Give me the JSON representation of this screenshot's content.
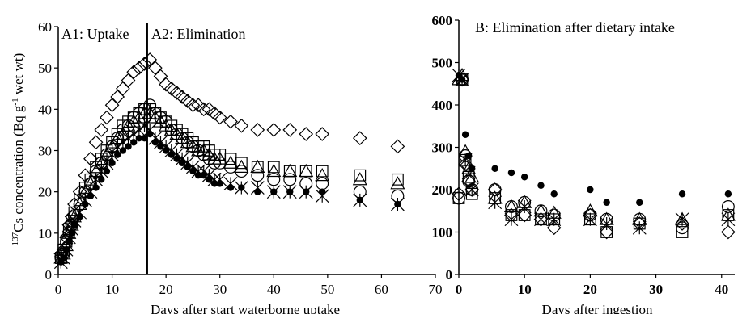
{
  "chart_data": [
    {
      "type": "scatter",
      "panel": "A",
      "region_labels": [
        "A1: Uptake",
        "A2: Elimination"
      ],
      "divider_x": 16.5,
      "xlabel": "Days after start waterborne uptake",
      "ylabel": "137Cs concentration (Bq g-1 wet wt)",
      "ylabel_parts": {
        "sup_mass": "137",
        "element": "Cs",
        "text": " concentration (Bq g",
        "sup_exp": "-1",
        "unit": " wet wt)"
      },
      "xlim": [
        0,
        70
      ],
      "ylim": [
        0,
        60
      ],
      "xticks": [
        "0",
        "10",
        "20",
        "30",
        "40",
        "50",
        "60",
        "70"
      ],
      "yticks": [
        "0",
        "10",
        "20",
        "30",
        "40",
        "50",
        "60"
      ],
      "grid": false,
      "legend": "none",
      "series": [
        {
          "marker": "diamond",
          "x": [
            0.5,
            1,
            1.5,
            2,
            2.5,
            3,
            4,
            5,
            6,
            7,
            8,
            9,
            10,
            11,
            12,
            13,
            14,
            15,
            16,
            17,
            18,
            19,
            20,
            21,
            22,
            23,
            24,
            25,
            26,
            27,
            28,
            29,
            30,
            32,
            34,
            37,
            40,
            43,
            46,
            49,
            56,
            63
          ],
          "y": [
            5,
            6,
            9,
            12,
            14,
            17,
            20,
            24,
            28,
            32,
            35,
            38,
            41,
            43,
            45,
            47,
            49,
            50,
            51,
            52,
            50,
            48,
            46,
            45,
            44,
            43,
            42,
            41,
            41,
            40,
            40,
            39,
            38,
            37,
            36,
            35,
            35,
            35,
            34,
            34,
            33,
            31
          ]
        },
        {
          "marker": "circle",
          "x": [
            0.5,
            1,
            1.5,
            2,
            2.5,
            3,
            4,
            5,
            6,
            7,
            8,
            9,
            10,
            11,
            12,
            13,
            14,
            15,
            16,
            17,
            18,
            19,
            20,
            21,
            22,
            23,
            24,
            25,
            26,
            27,
            28,
            29,
            30,
            32,
            34,
            37,
            40,
            43,
            46,
            49,
            56,
            63
          ],
          "y": [
            4,
            5,
            8,
            10,
            12,
            14,
            17,
            20,
            22,
            25,
            27,
            29,
            31,
            33,
            35,
            36,
            38,
            39,
            40,
            41,
            39,
            38,
            37,
            35,
            34,
            33,
            32,
            31,
            30,
            29,
            28,
            27,
            27,
            26,
            25,
            24,
            23,
            23,
            22,
            22,
            20,
            19
          ]
        },
        {
          "marker": "square",
          "x": [
            0.5,
            1,
            1.5,
            2,
            2.5,
            3,
            4,
            5,
            6,
            7,
            8,
            9,
            10,
            11,
            12,
            13,
            14,
            15,
            16,
            17,
            18,
            19,
            20,
            21,
            22,
            23,
            24,
            25,
            26,
            27,
            28,
            29,
            30,
            32,
            34,
            37,
            40,
            43,
            46,
            49,
            56,
            63
          ],
          "y": [
            4,
            6,
            8,
            11,
            13,
            15,
            18,
            21,
            23,
            26,
            28,
            30,
            32,
            34,
            36,
            37,
            38,
            39,
            40,
            40,
            39,
            38,
            37,
            36,
            35,
            34,
            33,
            32,
            31,
            31,
            30,
            29,
            29,
            28,
            27,
            26,
            26,
            25,
            25,
            25,
            24,
            23
          ]
        },
        {
          "marker": "triangle",
          "x": [
            0.5,
            1,
            1.5,
            2,
            2.5,
            3,
            4,
            5,
            6,
            7,
            8,
            9,
            10,
            11,
            12,
            13,
            14,
            15,
            16,
            17,
            18,
            19,
            20,
            21,
            22,
            23,
            24,
            25,
            26,
            27,
            28,
            29,
            30,
            32,
            34,
            37,
            40,
            43,
            46,
            49,
            56,
            63
          ],
          "y": [
            4,
            5,
            7,
            10,
            12,
            14,
            17,
            20,
            22,
            25,
            27,
            29,
            31,
            33,
            34,
            36,
            37,
            38,
            39,
            39,
            38,
            37,
            36,
            35,
            34,
            33,
            32,
            31,
            30,
            30,
            29,
            28,
            28,
            27,
            26,
            26,
            25,
            25,
            25,
            24,
            23,
            22
          ]
        },
        {
          "marker": "cross",
          "x": [
            0.5,
            1,
            1.5,
            2,
            2.5,
            3,
            4,
            5,
            6,
            7,
            8,
            9,
            10,
            11,
            12,
            13,
            14,
            15,
            16,
            17,
            18,
            19,
            20,
            21,
            22,
            23,
            24,
            25,
            26,
            27,
            28,
            29,
            30,
            32,
            34,
            37,
            40,
            43,
            46,
            49,
            56,
            63
          ],
          "y": [
            3,
            4,
            6,
            9,
            11,
            13,
            15,
            18,
            20,
            23,
            25,
            27,
            29,
            31,
            32,
            33,
            34,
            35,
            36,
            35,
            33,
            32,
            31,
            30,
            29,
            28,
            27,
            26,
            25,
            25,
            24,
            23,
            23,
            22,
            21,
            21,
            20,
            20,
            20,
            19,
            18,
            17
          ]
        },
        {
          "marker": "dot",
          "x": [
            0.5,
            1,
            1.5,
            2,
            2.5,
            3,
            4,
            5,
            6,
            7,
            8,
            9,
            10,
            11,
            12,
            13,
            14,
            15,
            16,
            17,
            18,
            19,
            20,
            21,
            22,
            23,
            24,
            25,
            26,
            27,
            28,
            29,
            30,
            32,
            34,
            37,
            40,
            43,
            46,
            49,
            56,
            63
          ],
          "y": [
            3,
            4,
            6,
            8,
            10,
            12,
            14,
            17,
            19,
            21,
            23,
            25,
            27,
            29,
            30,
            31,
            32,
            33,
            33,
            34,
            32,
            31,
            30,
            29,
            28,
            27,
            26,
            25,
            24,
            24,
            23,
            22,
            22,
            21,
            21,
            20,
            20,
            20,
            20,
            20,
            18,
            17
          ]
        }
      ]
    },
    {
      "type": "scatter",
      "panel": "B",
      "title": "B: Elimination after dietary intake",
      "xlabel": "Days after ingestion",
      "xlim": [
        0,
        42
      ],
      "ylim": [
        0,
        600
      ],
      "xticks": [
        "0",
        "10",
        "20",
        "30",
        "40"
      ],
      "yticks": [
        "0",
        "100",
        "200",
        "300",
        "400",
        "500",
        "600"
      ],
      "grid": false,
      "legend": "none",
      "series": [
        {
          "marker": "dot",
          "x": [
            0,
            0.5,
            1,
            1.5,
            2,
            5.5,
            8,
            10,
            12.5,
            14.5,
            20,
            22.5,
            27.5,
            34,
            41
          ],
          "y": [
            470,
            460,
            330,
            280,
            250,
            250,
            240,
            230,
            210,
            190,
            200,
            170,
            170,
            190,
            190
          ]
        },
        {
          "marker": "triangle",
          "x": [
            0,
            0.5,
            1,
            1.5,
            2,
            5.5,
            8,
            10,
            12.5,
            14.5,
            20,
            22.5,
            27.5,
            34,
            41
          ],
          "y": [
            460,
            470,
            290,
            250,
            230,
            180,
            160,
            170,
            150,
            145,
            150,
            130,
            130,
            130,
            140
          ]
        },
        {
          "marker": "circle",
          "x": [
            0,
            0.5,
            1,
            1.5,
            2,
            5.5,
            8,
            10,
            12.5,
            14.5,
            20,
            22.5,
            27.5,
            34,
            41
          ],
          "y": [
            180,
            460,
            280,
            220,
            200,
            200,
            160,
            170,
            150,
            140,
            140,
            130,
            130,
            110,
            160
          ]
        },
        {
          "marker": "square",
          "x": [
            0,
            0.5,
            1,
            1.5,
            2,
            5.5,
            8,
            10,
            12.5,
            14.5,
            20,
            22.5,
            27.5,
            34,
            41
          ],
          "y": [
            180,
            460,
            270,
            230,
            190,
            180,
            140,
            140,
            130,
            130,
            130,
            100,
            120,
            100,
            140
          ]
        },
        {
          "marker": "diamond",
          "x": [
            0,
            0.5,
            1,
            1.5,
            2,
            5.5,
            8,
            10,
            12.5,
            14.5,
            20,
            22.5,
            27.5,
            34,
            41
          ],
          "y": [
            190,
            460,
            260,
            220,
            200,
            200,
            140,
            140,
            130,
            110,
            140,
            100,
            120,
            120,
            100
          ]
        },
        {
          "marker": "cross",
          "x": [
            0,
            0.5,
            1,
            1.5,
            2,
            5.5,
            8,
            10,
            12.5,
            14.5,
            20,
            22.5,
            27.5,
            34,
            41
          ],
          "y": [
            470,
            460,
            270,
            240,
            200,
            170,
            130,
            160,
            130,
            130,
            130,
            120,
            110,
            130,
            130
          ]
        }
      ]
    }
  ]
}
